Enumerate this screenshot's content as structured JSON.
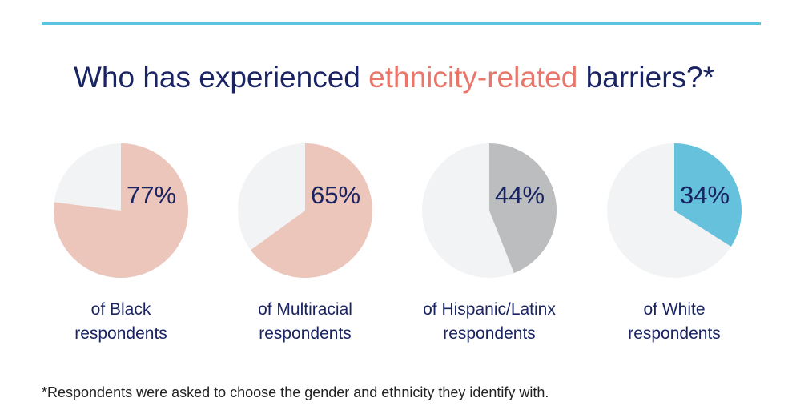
{
  "title": {
    "before": "Who has experienced ",
    "highlight": "ethnicity-related",
    "after": " barriers?*"
  },
  "footnote": "*Respondents were asked to choose the gender and ethnicity they identify with.",
  "colors": {
    "rule": "#5bc4df",
    "remainder": "#f2f3f4",
    "text": "#1a2463",
    "highlight": "#e8766a"
  },
  "chart_data": [
    {
      "type": "pie",
      "label": "77%",
      "value": 77,
      "color": "#ecc5bb",
      "caption1": "of Black",
      "caption2": "respondents"
    },
    {
      "type": "pie",
      "label": "65%",
      "value": 65,
      "color": "#ecc5bb",
      "caption1": "of Multiracial",
      "caption2": "respondents"
    },
    {
      "type": "pie",
      "label": "44%",
      "value": 44,
      "color": "#bcbdbf",
      "caption1": "of Hispanic/Latinx",
      "caption2": "respondents"
    },
    {
      "type": "pie",
      "label": "34%",
      "value": 34,
      "color": "#66c1dc",
      "caption1": "of White",
      "caption2": "respondents"
    }
  ]
}
